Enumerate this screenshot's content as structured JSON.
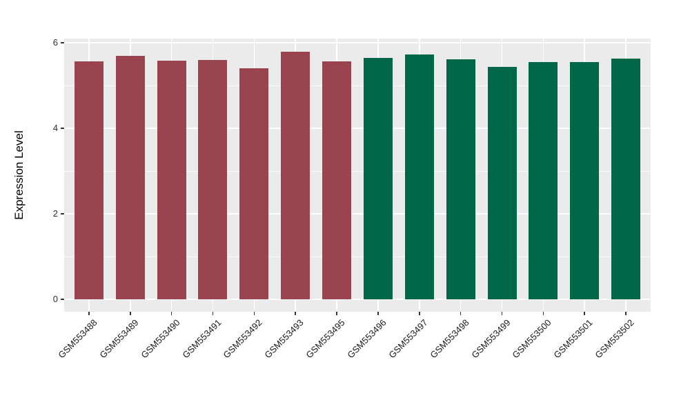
{
  "chart_data": {
    "type": "bar",
    "title": "",
    "xlabel": "",
    "ylabel": "Expression Level",
    "categories": [
      "GSM553488",
      "GSM553489",
      "GSM553490",
      "GSM553491",
      "GSM553492",
      "GSM553493",
      "GSM553495",
      "GSM553496",
      "GSM553497",
      "GSM553498",
      "GSM553499",
      "GSM553500",
      "GSM553501",
      "GSM553502"
    ],
    "values": [
      5.56,
      5.69,
      5.58,
      5.6,
      5.4,
      5.79,
      5.56,
      5.64,
      5.73,
      5.61,
      5.44,
      5.55,
      5.55,
      5.63
    ],
    "bar_colors": [
      "#9A4450",
      "#9A4450",
      "#9A4450",
      "#9A4450",
      "#9A4450",
      "#9A4450",
      "#9A4450",
      "#006648",
      "#006648",
      "#006648",
      "#006648",
      "#006648",
      "#006648",
      "#006648"
    ],
    "group_colors": {
      "group1": "#9A4450",
      "group2": "#006648"
    },
    "y_ticks": [
      0,
      2,
      4,
      6
    ],
    "y_minor_ticks": [
      1,
      3,
      5
    ],
    "ylim": [
      0,
      6.1
    ],
    "grid": true,
    "legend_position": "none",
    "panel_bg": "#EBEBEB",
    "grid_color": "#FFFFFF"
  }
}
